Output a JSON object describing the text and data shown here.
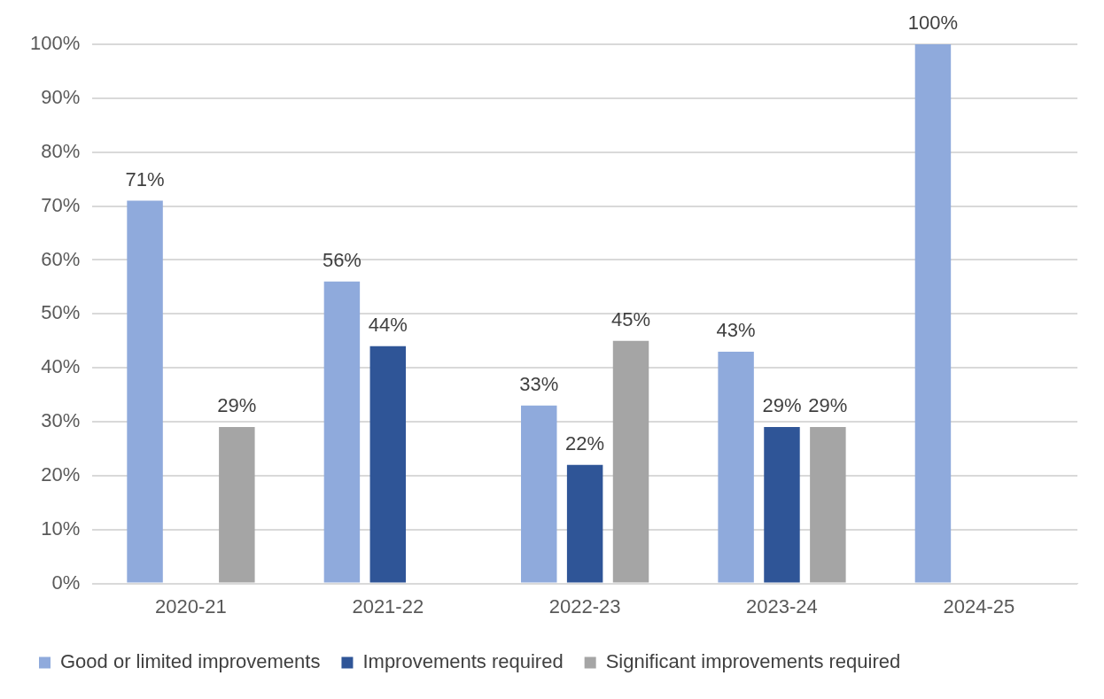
{
  "chart_data": {
    "type": "bar",
    "categories": [
      "2020-21",
      "2021-22",
      "2022-23",
      "2023-24",
      "2024-25"
    ],
    "series": [
      {
        "name": "Good or limited improvements",
        "color": "#8faadc",
        "values": [
          71,
          56,
          33,
          43,
          100
        ],
        "value_labels": [
          "71%",
          "56%",
          "33%",
          "43%",
          "100%"
        ]
      },
      {
        "name": "Improvements required",
        "color": "#2f5597",
        "values": [
          null,
          44,
          22,
          29,
          null
        ],
        "value_labels": [
          null,
          "44%",
          "22%",
          "29%",
          null
        ]
      },
      {
        "name": "Significant improvements required",
        "color": "#a5a5a5",
        "values": [
          29,
          null,
          45,
          29,
          null
        ],
        "value_labels": [
          "29%",
          null,
          "45%",
          "29%",
          null
        ]
      }
    ],
    "ylim": [
      0,
      100
    ],
    "yticks": [
      {
        "value": 0,
        "label": "0%"
      },
      {
        "value": 10,
        "label": "10%"
      },
      {
        "value": 20,
        "label": "20%"
      },
      {
        "value": 30,
        "label": "30%"
      },
      {
        "value": 40,
        "label": "40%"
      },
      {
        "value": 50,
        "label": "50%"
      },
      {
        "value": 60,
        "label": "60%"
      },
      {
        "value": 70,
        "label": "70%"
      },
      {
        "value": 80,
        "label": "80%"
      },
      {
        "value": 90,
        "label": "90%"
      },
      {
        "value": 100,
        "label": "100%"
      }
    ],
    "grid": "y",
    "legend": "bottom"
  }
}
